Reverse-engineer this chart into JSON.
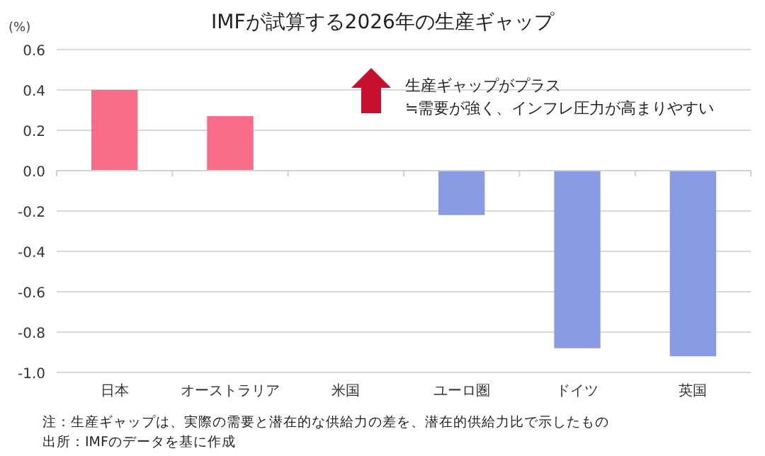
{
  "chart_data": {
    "type": "bar",
    "title": "IMFが試算する2026年の生産ギャップ",
    "ylabel": "(%)",
    "categories": [
      "日本",
      "オーストラリア",
      "米国",
      "ユーロ圏",
      "ドイツ",
      "英国"
    ],
    "values": [
      0.4,
      0.27,
      0,
      -0.22,
      -0.88,
      -0.92
    ],
    "colors": [
      "#f96b88",
      "#f96b88",
      "#f96b88",
      "#8a9be3",
      "#8a9be3",
      "#8a9be3"
    ],
    "ylim": [
      -1.0,
      0.6
    ],
    "yticks": [
      {
        "value": -1.0,
        "label": "-1.0"
      },
      {
        "value": -0.8,
        "label": "-0.8"
      },
      {
        "value": -0.6,
        "label": "-0.6"
      },
      {
        "value": -0.4,
        "label": "-0.4"
      },
      {
        "value": -0.2,
        "label": "-0.2"
      },
      {
        "value": 0,
        "label": "0.0"
      },
      {
        "value": 0.2,
        "label": "0.2"
      },
      {
        "value": 0.4,
        "label": "0.4"
      },
      {
        "value": 0.6,
        "label": "0.6"
      }
    ],
    "grid": "y",
    "annotations": [
      "生産ギャップがプラス",
      "≒需要が強く、インフレ圧力が高まりやすい",
      "注：生産ギャップは、実際の需要と潜在的な供給力の差を、潜在的供給力比で示したもの",
      "出所：IMFのデータを基に作成"
    ]
  }
}
